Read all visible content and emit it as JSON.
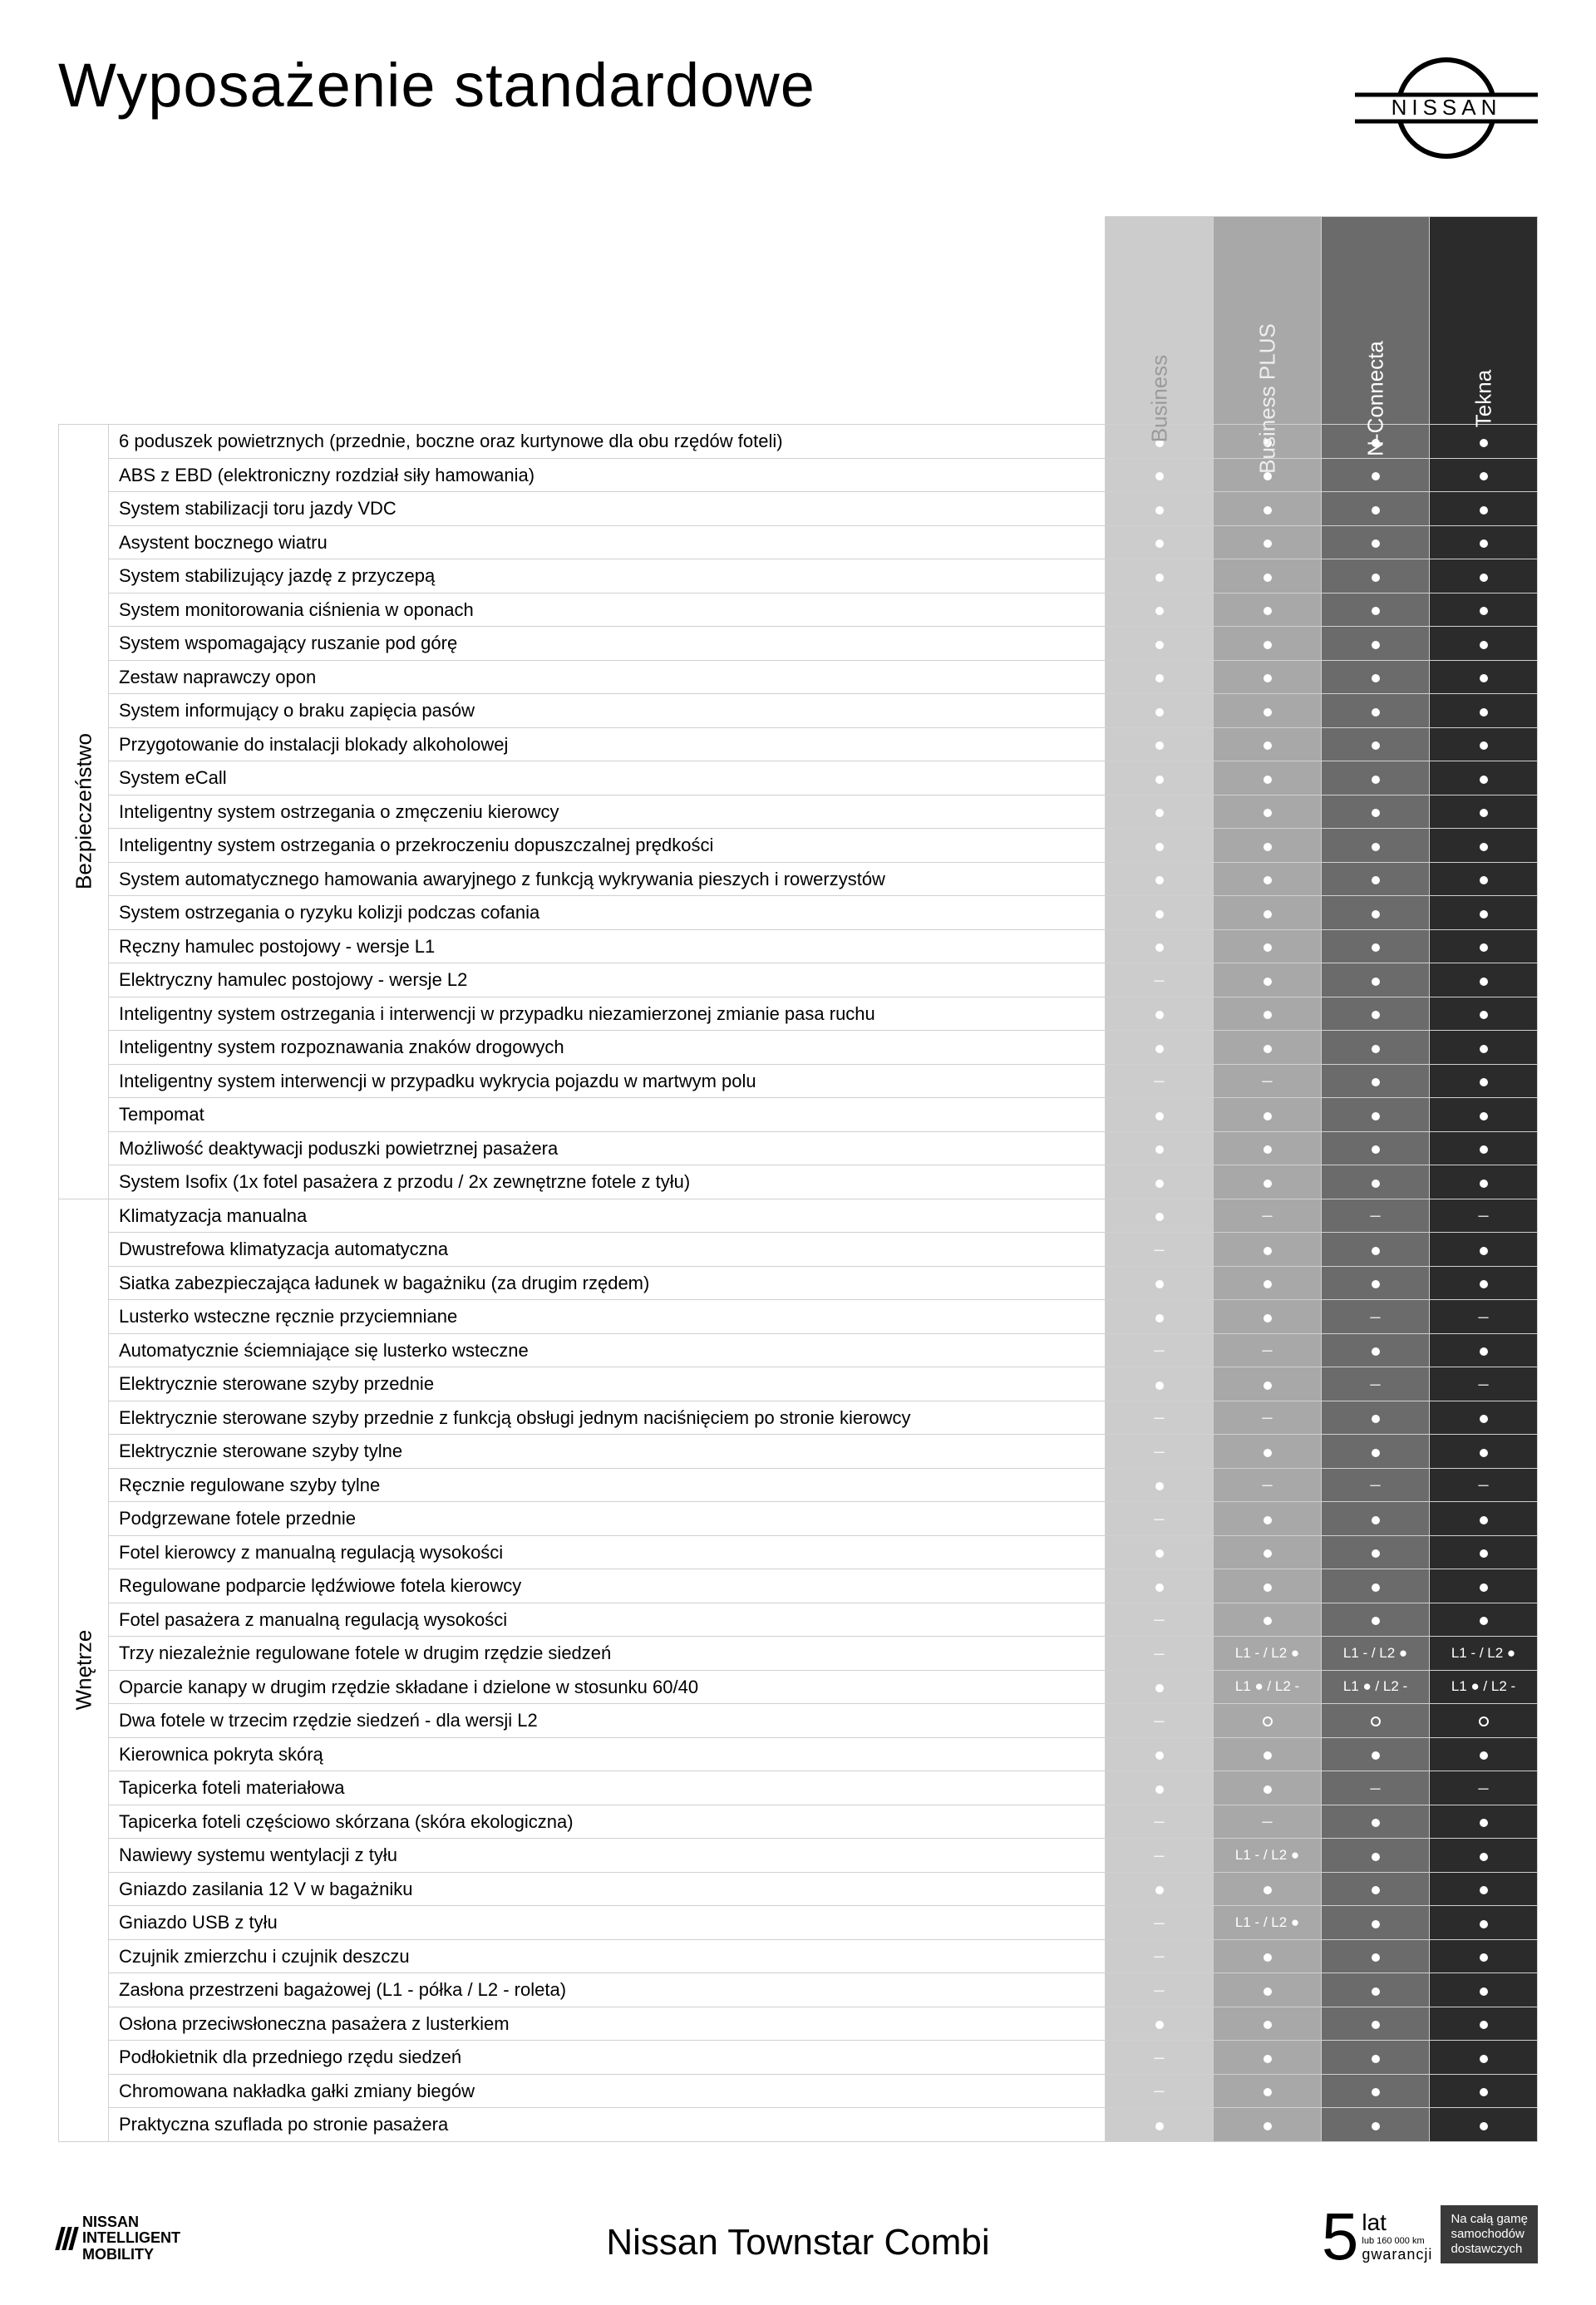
{
  "title": "Wyposażenie standardowe",
  "brand": "NISSAN",
  "footer_model": "Nissan Townstar Combi",
  "nim": {
    "l1": "NISSAN",
    "l2": "INTELLIGENT",
    "l3": "MOBILITY"
  },
  "warranty": {
    "num": "5",
    "lat": "lat",
    "sub": "lub 160 000 km",
    "gw": "gwarancji",
    "box1": "Na całą gamę",
    "box2": "samochodów",
    "box3": "dostawczych"
  },
  "trims": [
    {
      "label": "Business",
      "bg": "#cccccc",
      "fg": "#9a9a9a"
    },
    {
      "label": "Business PLUS",
      "bg": "#a8a8a8",
      "fg": "#eeeeee"
    },
    {
      "label": "N-Connecta",
      "bg": "#6b6b6b",
      "fg": "#ffffff"
    },
    {
      "label": "Tekna",
      "bg": "#2b2b2b",
      "fg": "#ffffff"
    }
  ],
  "categories": [
    {
      "label": "Bezpieczeństwo",
      "rows": [
        {
          "feature": "6 poduszek powietrznych (przednie, boczne oraz kurtynowe dla obu rzędów foteli)",
          "v": [
            "dot",
            "dot",
            "dot",
            "dot"
          ]
        },
        {
          "feature": "ABS z EBD (elektroniczny rozdział siły hamowania)",
          "v": [
            "dot",
            "dot",
            "dot",
            "dot"
          ]
        },
        {
          "feature": "System stabilizacji toru jazdy VDC",
          "v": [
            "dot",
            "dot",
            "dot",
            "dot"
          ]
        },
        {
          "feature": "Asystent bocznego wiatru",
          "v": [
            "dot",
            "dot",
            "dot",
            "dot"
          ]
        },
        {
          "feature": "System stabilizujący jazdę z przyczepą",
          "v": [
            "dot",
            "dot",
            "dot",
            "dot"
          ]
        },
        {
          "feature": "System monitorowania ciśnienia w oponach",
          "v": [
            "dot",
            "dot",
            "dot",
            "dot"
          ]
        },
        {
          "feature": "System wspomagający ruszanie pod górę",
          "v": [
            "dot",
            "dot",
            "dot",
            "dot"
          ]
        },
        {
          "feature": "Zestaw naprawczy opon",
          "v": [
            "dot",
            "dot",
            "dot",
            "dot"
          ]
        },
        {
          "feature": "System informujący o braku zapięcia pasów",
          "v": [
            "dot",
            "dot",
            "dot",
            "dot"
          ]
        },
        {
          "feature": "Przygotowanie do instalacji blokady alkoholowej",
          "v": [
            "dot",
            "dot",
            "dot",
            "dot"
          ]
        },
        {
          "feature": "System eCall",
          "v": [
            "dot",
            "dot",
            "dot",
            "dot"
          ]
        },
        {
          "feature": "Inteligentny system ostrzegania o zmęczeniu kierowcy",
          "v": [
            "dot",
            "dot",
            "dot",
            "dot"
          ]
        },
        {
          "feature": "Inteligentny system ostrzegania o przekroczeniu dopuszczalnej prędkości",
          "v": [
            "dot",
            "dot",
            "dot",
            "dot"
          ]
        },
        {
          "feature": "System automatycznego hamowania awaryjnego z funkcją wykrywania pieszych i rowerzystów",
          "v": [
            "dot",
            "dot",
            "dot",
            "dot"
          ]
        },
        {
          "feature": "System ostrzegania o ryzyku kolizji podczas cofania",
          "v": [
            "dot",
            "dot",
            "dot",
            "dot"
          ]
        },
        {
          "feature": "Ręczny hamulec postojowy - wersje L1",
          "v": [
            "dot",
            "dot",
            "dot",
            "dot"
          ]
        },
        {
          "feature": "Elektryczny hamulec postojowy - wersje L2",
          "v": [
            "dash",
            "dot",
            "dot",
            "dot"
          ]
        },
        {
          "feature": "Inteligentny system ostrzegania i interwencji w przypadku niezamierzonej zmianie pasa ruchu",
          "v": [
            "dot",
            "dot",
            "dot",
            "dot"
          ]
        },
        {
          "feature": "Inteligentny system rozpoznawania znaków drogowych",
          "v": [
            "dot",
            "dot",
            "dot",
            "dot"
          ]
        },
        {
          "feature": "Inteligentny system interwencji w przypadku wykrycia pojazdu w martwym polu",
          "v": [
            "dash",
            "dash",
            "dot",
            "dot"
          ]
        },
        {
          "feature": "Tempomat",
          "v": [
            "dot",
            "dot",
            "dot",
            "dot"
          ]
        },
        {
          "feature": "Możliwość deaktywacji poduszki powietrznej pasażera",
          "v": [
            "dot",
            "dot",
            "dot",
            "dot"
          ]
        },
        {
          "feature": "System Isofix  (1x fotel pasażera z przodu / 2x zewnętrzne fotele z tyłu)",
          "v": [
            "dot",
            "dot",
            "dot",
            "dot"
          ]
        }
      ]
    },
    {
      "label": "Wnętrze",
      "rows": [
        {
          "feature": "Klimatyzacja manualna",
          "v": [
            "dot",
            "dash",
            "dash",
            "dash"
          ]
        },
        {
          "feature": "Dwustrefowa klimatyzacja automatyczna",
          "v": [
            "dash",
            "dot",
            "dot",
            "dot"
          ]
        },
        {
          "feature": "Siatka zabezpieczająca ładunek w bagażniku (za drugim rzędem)",
          "v": [
            "dot",
            "dot",
            "dot",
            "dot"
          ]
        },
        {
          "feature": "Lusterko wsteczne ręcznie przyciemniane",
          "v": [
            "dot",
            "dot",
            "dash",
            "dash"
          ]
        },
        {
          "feature": "Automatycznie ściemniające się lusterko wsteczne",
          "v": [
            "dash",
            "dash",
            "dot",
            "dot"
          ]
        },
        {
          "feature": "Elektrycznie sterowane szyby przednie",
          "v": [
            "dot",
            "dot",
            "dash",
            "dash"
          ]
        },
        {
          "feature": "Elektrycznie sterowane szyby przednie z funkcją obsługi jednym naciśnięciem po stronie kierowcy",
          "v": [
            "dash",
            "dash",
            "dot",
            "dot"
          ]
        },
        {
          "feature": "Elektrycznie sterowane szyby tylne",
          "v": [
            "dash",
            "dot",
            "dot",
            "dot"
          ]
        },
        {
          "feature": "Ręcznie regulowane szyby tylne",
          "v": [
            "dot",
            "dash",
            "dash",
            "dash"
          ]
        },
        {
          "feature": "Podgrzewane fotele przednie",
          "v": [
            "dash",
            "dot",
            "dot",
            "dot"
          ]
        },
        {
          "feature": "Fotel kierowcy z manualną regulacją wysokości",
          "v": [
            "dot",
            "dot",
            "dot",
            "dot"
          ]
        },
        {
          "feature": "Regulowane podparcie lędźwiowe fotela kierowcy",
          "v": [
            "dot",
            "dot",
            "dot",
            "dot"
          ]
        },
        {
          "feature": "Fotel pasażera z manualną regulacją wysokości",
          "v": [
            "dash",
            "dot",
            "dot",
            "dot"
          ]
        },
        {
          "feature": "Trzy niezależnie regulowane fotele w drugim rzędzie siedzeń",
          "v": [
            "dash",
            "L1 - / L2 ●",
            "L1 - / L2 ●",
            "L1 - / L2 ●"
          ]
        },
        {
          "feature": "Oparcie kanapy w drugim rzędzie składane i dzielone w stosunku 60/40",
          "v": [
            "dot",
            "L1 ● / L2 -",
            "L1 ● / L2 -",
            "L1 ● / L2 -"
          ]
        },
        {
          "feature": "Dwa fotele w trzecim rzędzie siedzeń - dla wersji L2",
          "v": [
            "dash",
            "ring",
            "ring",
            "ring"
          ]
        },
        {
          "feature": "Kierownica pokryta skórą",
          "v": [
            "dot",
            "dot",
            "dot",
            "dot"
          ]
        },
        {
          "feature": "Tapicerka foteli materiałowa",
          "v": [
            "dot",
            "dot",
            "dash",
            "dash"
          ]
        },
        {
          "feature": "Tapicerka foteli częściowo skórzana (skóra ekologiczna)",
          "v": [
            "dash",
            "dash",
            "dot",
            "dot"
          ]
        },
        {
          "feature": "Nawiewy systemu wentylacji z tyłu",
          "v": [
            "dash",
            "L1 - / L2 ●",
            "dot",
            "dot"
          ]
        },
        {
          "feature": "Gniazdo zasilania 12 V w bagażniku",
          "v": [
            "dot",
            "dot",
            "dot",
            "dot"
          ]
        },
        {
          "feature": "Gniazdo USB z tyłu",
          "v": [
            "dash",
            "L1 - / L2 ●",
            "dot",
            "dot"
          ]
        },
        {
          "feature": "Czujnik zmierzchu i czujnik deszczu",
          "v": [
            "dash",
            "dot",
            "dot",
            "dot"
          ]
        },
        {
          "feature": "Zasłona przestrzeni bagażowej (L1 - półka / L2 - roleta)",
          "v": [
            "dash",
            "dot",
            "dot",
            "dot"
          ]
        },
        {
          "feature": "Osłona przeciwsłoneczna pasażera z lusterkiem",
          "v": [
            "dot",
            "dot",
            "dot",
            "dot"
          ]
        },
        {
          "feature": "Podłokietnik dla przedniego rzędu siedzeń",
          "v": [
            "dash",
            "dot",
            "dot",
            "dot"
          ]
        },
        {
          "feature": "Chromowana nakładka gałki zmiany biegów",
          "v": [
            "dash",
            "dot",
            "dot",
            "dot"
          ]
        },
        {
          "feature": "Praktyczna szuflada po stronie pasażera",
          "v": [
            "dot",
            "dot",
            "dot",
            "dot"
          ]
        }
      ]
    }
  ]
}
